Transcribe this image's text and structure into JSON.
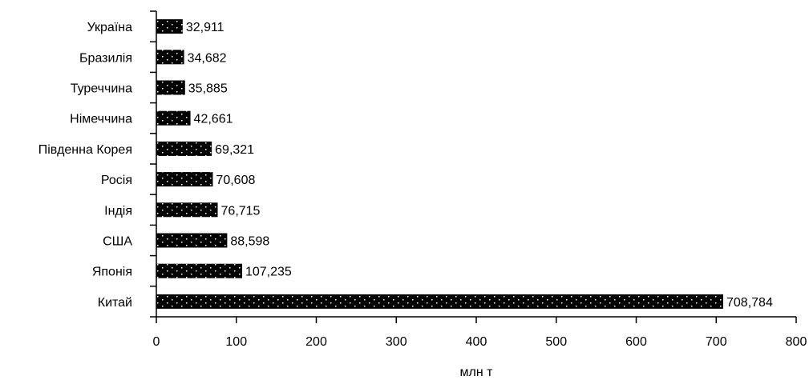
{
  "chart_data": {
    "type": "bar",
    "orientation": "horizontal",
    "title": "",
    "xlabel": "млн т",
    "ylabel": "",
    "xlim": [
      0,
      800
    ],
    "xticks": [
      0,
      100,
      200,
      300,
      400,
      500,
      600,
      700,
      800
    ],
    "categories": [
      "Україна",
      "Бразилія",
      "Туреччина",
      "Німеччина",
      "Південна Корея",
      "Росія",
      "Індія",
      "США",
      "Японія",
      "Китай"
    ],
    "values": [
      32.911,
      34.682,
      35.885,
      42.661,
      69.321,
      70.608,
      76.715,
      88.598,
      107.235,
      708.784
    ],
    "value_labels": [
      "32,911",
      "34,682",
      "35,885",
      "42,661",
      "69,321",
      "70,608",
      "76,715",
      "88,598",
      "107,235",
      "708,784"
    ],
    "bar_color": "#000000",
    "bar_dot_color": "#ffffff",
    "grid": false,
    "legend": "none"
  }
}
